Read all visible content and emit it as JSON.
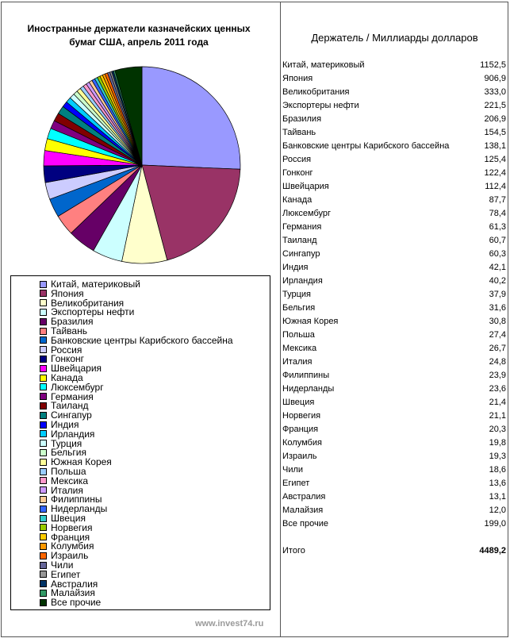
{
  "chart_data": {
    "type": "pie",
    "title": "Иностранные держатели казначейских ценных бумаг США, апрель 2011 года",
    "table_header": "Держатель / Миллиарды долларов",
    "unit": "Миллиарды долларов",
    "legend_placement": "bottom",
    "slices": [
      {
        "label": "Китай, материковый",
        "value": 1152.5,
        "value_text": "1152,5",
        "color": "#9999ff"
      },
      {
        "label": "Япония",
        "value": 906.9,
        "value_text": "906,9",
        "color": "#993366"
      },
      {
        "label": "Великобритания",
        "value": 333.0,
        "value_text": "333,0",
        "color": "#ffffcc"
      },
      {
        "label": "Экспортеры нефти",
        "value": 221.5,
        "value_text": "221,5",
        "color": "#ccffff"
      },
      {
        "label": "Бразилия",
        "value": 206.9,
        "value_text": "206,9",
        "color": "#660066"
      },
      {
        "label": "Тайвань",
        "value": 154.5,
        "value_text": "154,5",
        "color": "#ff8080"
      },
      {
        "label": "Банковские центры Карибского бассейна",
        "value": 138.1,
        "value_text": "138,1",
        "color": "#0066cc"
      },
      {
        "label": "Россия",
        "value": 125.4,
        "value_text": "125,4",
        "color": "#ccccff"
      },
      {
        "label": "Гонконг",
        "value": 122.4,
        "value_text": "122,4",
        "color": "#000080"
      },
      {
        "label": "Швейцария",
        "value": 112.4,
        "value_text": "112,4",
        "color": "#ff00ff"
      },
      {
        "label": "Канада",
        "value": 87.7,
        "value_text": "87,7",
        "color": "#ffff00"
      },
      {
        "label": "Люксембург",
        "value": 78.4,
        "value_text": "78,4",
        "color": "#00ffff"
      },
      {
        "label": "Германия",
        "value": 61.3,
        "value_text": "61,3",
        "color": "#800080"
      },
      {
        "label": "Таиланд",
        "value": 60.7,
        "value_text": "60,7",
        "color": "#800000"
      },
      {
        "label": "Сингапур",
        "value": 60.3,
        "value_text": "60,3",
        "color": "#008080"
      },
      {
        "label": "Индия",
        "value": 42.1,
        "value_text": "42,1",
        "color": "#0000ff"
      },
      {
        "label": "Ирландия",
        "value": 40.2,
        "value_text": "40,2",
        "color": "#00ccff"
      },
      {
        "label": "Турция",
        "value": 37.9,
        "value_text": "37,9",
        "color": "#ccffff"
      },
      {
        "label": "Бельгия",
        "value": 31.6,
        "value_text": "31,6",
        "color": "#ccffcc"
      },
      {
        "label": "Южная Корея",
        "value": 30.8,
        "value_text": "30,8",
        "color": "#ffff99"
      },
      {
        "label": "Польша",
        "value": 27.4,
        "value_text": "27,4",
        "color": "#99ccff"
      },
      {
        "label": "Мексика",
        "value": 26.7,
        "value_text": "26,7",
        "color": "#ff99cc"
      },
      {
        "label": "Италия",
        "value": 24.8,
        "value_text": "24,8",
        "color": "#cc99ff"
      },
      {
        "label": "Филиппины",
        "value": 23.9,
        "value_text": "23,9",
        "color": "#ffcc99"
      },
      {
        "label": "Нидерланды",
        "value": 23.6,
        "value_text": "23,6",
        "color": "#3366ff"
      },
      {
        "label": "Швеция",
        "value": 21.4,
        "value_text": "21,4",
        "color": "#33cccc"
      },
      {
        "label": "Норвегия",
        "value": 21.1,
        "value_text": "21,1",
        "color": "#99cc00"
      },
      {
        "label": "Франция",
        "value": 20.3,
        "value_text": "20,3",
        "color": "#ffcc00"
      },
      {
        "label": "Колумбия",
        "value": 19.8,
        "value_text": "19,8",
        "color": "#ff9900"
      },
      {
        "label": "Израиль",
        "value": 19.3,
        "value_text": "19,3",
        "color": "#ff6600"
      },
      {
        "label": "Чили",
        "value": 18.6,
        "value_text": "18,6",
        "color": "#666699"
      },
      {
        "label": "Египет",
        "value": 13.6,
        "value_text": "13,6",
        "color": "#969696"
      },
      {
        "label": "Австралия",
        "value": 13.1,
        "value_text": "13,1",
        "color": "#003366"
      },
      {
        "label": "Малайзия",
        "value": 12.0,
        "value_text": "12,0",
        "color": "#339966"
      },
      {
        "label": "Все прочие",
        "value": 199.0,
        "value_text": "199,0",
        "color": "#003300"
      }
    ],
    "total_label": "Итого",
    "total_value_text": "4489,2"
  },
  "watermark": "www.invest74.ru"
}
